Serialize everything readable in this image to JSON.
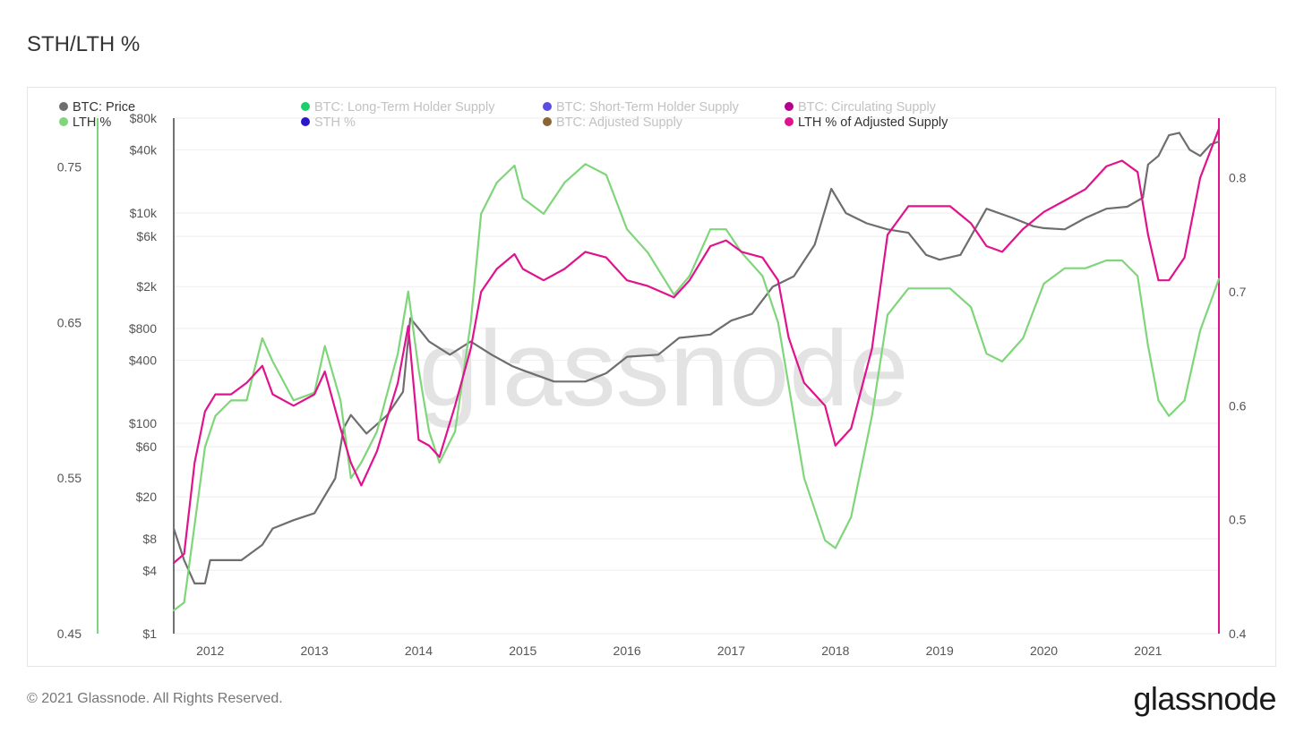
{
  "header": {
    "title": "STH/LTH %"
  },
  "footer": {
    "copyright": "© 2021 Glassnode. All Rights Reserved.",
    "brand": "glassnode"
  },
  "watermark": "glassnode",
  "colors": {
    "price": "#6e6e6e",
    "lth_pct": "#7fd67a",
    "lth_adj": "#e0138c",
    "lth_supply": "#1fce6a",
    "sth_supply": "#5b4de0",
    "circ_supply": "#b3008f",
    "sth_pct": "#2a18c8",
    "adj_supply": "#8a6435",
    "grid": "#eeeeee"
  },
  "chart_data": {
    "type": "line",
    "title": "STH/LTH %",
    "legend": [
      {
        "name": "BTC: Price",
        "color": "#6e6e6e",
        "active": true
      },
      {
        "name": "BTC: Long-Term Holder Supply",
        "color": "#1fce6a",
        "active": false
      },
      {
        "name": "BTC: Short-Term Holder Supply",
        "color": "#5b4de0",
        "active": false
      },
      {
        "name": "BTC: Circulating Supply",
        "color": "#b3008f",
        "active": false
      },
      {
        "name": "LTH %",
        "color": "#7fd67a",
        "active": true
      },
      {
        "name": "STH %",
        "color": "#2a18c8",
        "active": false
      },
      {
        "name": "BTC: Adjusted Supply",
        "color": "#8a6435",
        "active": false
      },
      {
        "name": "LTH % of Adjusted Supply",
        "color": "#e0138c",
        "active": true
      }
    ],
    "legend_position": "top",
    "grid": true,
    "x_ticks": [
      "2012",
      "2013",
      "2014",
      "2015",
      "2016",
      "2017",
      "2018",
      "2019",
      "2020",
      "2021"
    ],
    "x_range": [
      2011.65,
      2021.68
    ],
    "price_axis": {
      "scale": "log",
      "ticks": [
        "$1",
        "$4",
        "$8",
        "$20",
        "$60",
        "$100",
        "$400",
        "$800",
        "$2k",
        "$6k",
        "$10k",
        "$40k",
        "$80k"
      ],
      "tick_values": [
        1,
        4,
        8,
        20,
        60,
        100,
        400,
        800,
        2000,
        6000,
        10000,
        40000,
        80000
      ],
      "range": [
        1,
        80000
      ]
    },
    "lth_axis": {
      "ticks": [
        "0.45",
        "0.55",
        "0.65",
        "0.75"
      ],
      "tick_values": [
        0.45,
        0.55,
        0.65,
        0.75
      ],
      "range": [
        0.45,
        0.7815
      ]
    },
    "adj_axis": {
      "ticks": [
        "0.4",
        "0.5",
        "0.6",
        "0.7",
        "0.8"
      ],
      "tick_values": [
        0.4,
        0.5,
        0.6,
        0.7,
        0.8
      ],
      "range": [
        0.4,
        0.8523
      ]
    },
    "series": [
      {
        "name": "BTC: Price",
        "axis": "price",
        "x": [
          2011.65,
          2011.75,
          2011.85,
          2011.95,
          2012.0,
          2012.1,
          2012.3,
          2012.5,
          2012.6,
          2012.8,
          2013.0,
          2013.2,
          2013.28,
          2013.35,
          2013.5,
          2013.7,
          2013.85,
          2013.92,
          2014.0,
          2014.1,
          2014.3,
          2014.5,
          2014.7,
          2014.9,
          2015.0,
          2015.3,
          2015.6,
          2015.8,
          2016.0,
          2016.3,
          2016.5,
          2016.8,
          2017.0,
          2017.2,
          2017.4,
          2017.6,
          2017.8,
          2017.96,
          2018.1,
          2018.3,
          2018.5,
          2018.7,
          2018.87,
          2019.0,
          2019.2,
          2019.45,
          2019.7,
          2019.9,
          2020.0,
          2020.2,
          2020.4,
          2020.6,
          2020.8,
          2020.95,
          2021.0,
          2021.1,
          2021.2,
          2021.3,
          2021.4,
          2021.5,
          2021.6,
          2021.68
        ],
        "y": [
          10,
          5,
          3,
          3,
          5,
          5,
          5,
          7,
          10,
          12,
          14,
          30,
          90,
          120,
          80,
          120,
          200,
          1000,
          800,
          600,
          450,
          600,
          450,
          350,
          320,
          250,
          250,
          300,
          430,
          450,
          650,
          700,
          950,
          1100,
          2000,
          2500,
          5000,
          17000,
          10000,
          8000,
          7000,
          6500,
          4000,
          3600,
          4000,
          11000,
          9000,
          7500,
          7200,
          7000,
          9000,
          11000,
          11500,
          14000,
          29000,
          35000,
          55000,
          58000,
          40000,
          35000,
          45000,
          48000
        ]
      },
      {
        "name": "LTH %",
        "axis": "lth",
        "x": [
          2011.65,
          2011.75,
          2011.85,
          2011.95,
          2012.05,
          2012.2,
          2012.35,
          2012.5,
          2012.6,
          2012.8,
          2013.0,
          2013.1,
          2013.25,
          2013.35,
          2013.45,
          2013.6,
          2013.8,
          2013.9,
          2014.0,
          2014.1,
          2014.2,
          2014.35,
          2014.5,
          2014.6,
          2014.75,
          2014.92,
          2015.0,
          2015.2,
          2015.4,
          2015.6,
          2015.8,
          2016.0,
          2016.2,
          2016.45,
          2016.6,
          2016.8,
          2016.95,
          2017.1,
          2017.3,
          2017.45,
          2017.55,
          2017.7,
          2017.9,
          2018.0,
          2018.15,
          2018.35,
          2018.5,
          2018.7,
          2018.9,
          2019.1,
          2019.3,
          2019.45,
          2019.6,
          2019.8,
          2020.0,
          2020.2,
          2020.4,
          2020.6,
          2020.75,
          2020.9,
          2021.0,
          2021.1,
          2021.2,
          2021.35,
          2021.5,
          2021.68
        ],
        "y": [
          0.465,
          0.47,
          0.52,
          0.57,
          0.59,
          0.6,
          0.6,
          0.64,
          0.625,
          0.6,
          0.605,
          0.635,
          0.6,
          0.55,
          0.56,
          0.58,
          0.63,
          0.67,
          0.62,
          0.58,
          0.56,
          0.58,
          0.65,
          0.72,
          0.74,
          0.751,
          0.73,
          0.72,
          0.74,
          0.752,
          0.745,
          0.71,
          0.695,
          0.668,
          0.68,
          0.71,
          0.71,
          0.695,
          0.68,
          0.65,
          0.61,
          0.55,
          0.51,
          0.505,
          0.525,
          0.59,
          0.655,
          0.672,
          0.672,
          0.672,
          0.66,
          0.63,
          0.625,
          0.64,
          0.675,
          0.685,
          0.685,
          0.69,
          0.69,
          0.68,
          0.635,
          0.6,
          0.59,
          0.6,
          0.645,
          0.678
        ]
      },
      {
        "name": "LTH % of Adjusted Supply",
        "axis": "adj",
        "x": [
          2011.65,
          2011.75,
          2011.85,
          2011.95,
          2012.05,
          2012.2,
          2012.35,
          2012.5,
          2012.6,
          2012.8,
          2013.0,
          2013.1,
          2013.25,
          2013.35,
          2013.45,
          2013.6,
          2013.8,
          2013.9,
          2014.0,
          2014.1,
          2014.2,
          2014.35,
          2014.5,
          2014.6,
          2014.75,
          2014.92,
          2015.0,
          2015.2,
          2015.4,
          2015.6,
          2015.8,
          2016.0,
          2016.2,
          2016.45,
          2016.6,
          2016.8,
          2016.95,
          2017.1,
          2017.3,
          2017.45,
          2017.55,
          2017.7,
          2017.9,
          2018.0,
          2018.15,
          2018.35,
          2018.5,
          2018.7,
          2018.9,
          2019.1,
          2019.3,
          2019.45,
          2019.6,
          2019.8,
          2020.0,
          2020.2,
          2020.4,
          2020.6,
          2020.75,
          2020.9,
          2021.0,
          2021.1,
          2021.2,
          2021.35,
          2021.5,
          2021.68
        ],
        "y": [
          0.462,
          0.47,
          0.55,
          0.595,
          0.61,
          0.61,
          0.62,
          0.635,
          0.61,
          0.6,
          0.61,
          0.63,
          0.58,
          0.55,
          0.53,
          0.56,
          0.62,
          0.67,
          0.57,
          0.565,
          0.555,
          0.6,
          0.65,
          0.7,
          0.72,
          0.733,
          0.72,
          0.71,
          0.72,
          0.735,
          0.73,
          0.71,
          0.705,
          0.695,
          0.71,
          0.74,
          0.745,
          0.735,
          0.73,
          0.71,
          0.66,
          0.62,
          0.6,
          0.565,
          0.58,
          0.65,
          0.75,
          0.775,
          0.775,
          0.775,
          0.76,
          0.74,
          0.735,
          0.755,
          0.77,
          0.78,
          0.79,
          0.81,
          0.815,
          0.805,
          0.75,
          0.71,
          0.71,
          0.73,
          0.8,
          0.843
        ]
      }
    ]
  }
}
